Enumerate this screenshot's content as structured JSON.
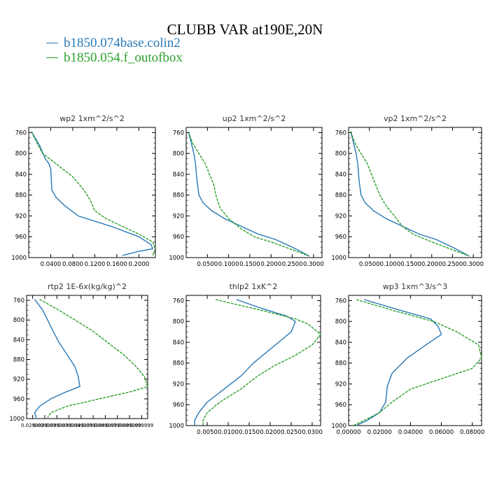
{
  "figure": {
    "title": "CLUBB VAR at190E,20N",
    "legend": [
      {
        "label": "b1850.074base.colin2",
        "color": "#2878b5"
      },
      {
        "label": "b1850.054.f_outofbox",
        "color": "#2ca02c"
      }
    ]
  },
  "chart_data": [
    {
      "type": "line",
      "title": "wp2   1xm^2/s^2",
      "xticks": [
        "0.0400",
        "0.0800",
        "0.1200",
        "0.1600",
        "0.2000"
      ],
      "xlim": [
        0.0,
        0.23
      ],
      "yticks": [
        "760",
        "800",
        "840",
        "880",
        "920",
        "960",
        "1000"
      ],
      "ylim": [
        750,
        1000
      ],
      "series": [
        {
          "color": "#2878b5",
          "x": [
            0.005,
            0.02,
            0.03,
            0.037,
            0.04,
            0.042,
            0.05,
            0.065,
            0.09,
            0.15,
            0.2,
            0.222,
            0.225,
            0.2,
            0.17
          ],
          "y": [
            758,
            785,
            810,
            820,
            830,
            870,
            885,
            900,
            920,
            940,
            960,
            975,
            983,
            988,
            996
          ]
        },
        {
          "color": "#2ca02c",
          "dashed": true,
          "x": [
            0.005,
            0.015,
            0.025,
            0.05,
            0.08,
            0.1,
            0.112,
            0.12,
            0.14,
            0.17,
            0.2,
            0.225,
            0.23,
            0.225
          ],
          "y": [
            758,
            780,
            800,
            820,
            845,
            870,
            890,
            910,
            925,
            940,
            955,
            970,
            982,
            996
          ]
        }
      ]
    },
    {
      "type": "line",
      "title": "up2   1xm^2/s^2",
      "xticks": [
        "0.0500",
        "0.1000",
        "0.1500",
        "0.2000",
        "0.2500",
        "0.3000"
      ],
      "xlim": [
        0.0,
        0.32
      ],
      "yticks": [
        "760",
        "800",
        "840",
        "880",
        "920",
        "960",
        "1000"
      ],
      "ylim": [
        750,
        1000
      ],
      "series": [
        {
          "color": "#2878b5",
          "x": [
            0.005,
            0.012,
            0.018,
            0.022,
            0.025,
            0.03,
            0.04,
            0.06,
            0.09,
            0.13,
            0.17,
            0.21,
            0.25,
            0.29
          ],
          "y": [
            758,
            780,
            800,
            820,
            850,
            880,
            895,
            910,
            925,
            940,
            955,
            965,
            980,
            997
          ]
        },
        {
          "color": "#2ca02c",
          "dashed": true,
          "x": [
            0.005,
            0.015,
            0.03,
            0.045,
            0.055,
            0.065,
            0.07,
            0.08,
            0.1,
            0.13,
            0.16,
            0.2,
            0.25,
            0.29
          ],
          "y": [
            758,
            780,
            800,
            820,
            840,
            860,
            880,
            905,
            925,
            945,
            960,
            970,
            985,
            997
          ]
        }
      ]
    },
    {
      "type": "line",
      "title": "vp2   1xm^2/s^2",
      "xticks": [
        "0.0500",
        "0.1000",
        "0.1500",
        "0.2000",
        "0.2500",
        "0.3000"
      ],
      "xlim": [
        0.0,
        0.32
      ],
      "yticks": [
        "760",
        "800",
        "840",
        "880",
        "920",
        "960",
        "1000"
      ],
      "ylim": [
        750,
        1000
      ],
      "series": [
        {
          "color": "#2878b5",
          "x": [
            0.005,
            0.012,
            0.018,
            0.022,
            0.025,
            0.03,
            0.04,
            0.06,
            0.09,
            0.13,
            0.17,
            0.21,
            0.25,
            0.29
          ],
          "y": [
            758,
            780,
            800,
            820,
            850,
            880,
            895,
            910,
            925,
            940,
            955,
            965,
            980,
            997
          ]
        },
        {
          "color": "#2ca02c",
          "dashed": true,
          "x": [
            0.005,
            0.015,
            0.03,
            0.045,
            0.055,
            0.065,
            0.075,
            0.09,
            0.11,
            0.13,
            0.155,
            0.2,
            0.25,
            0.29
          ],
          "y": [
            758,
            780,
            800,
            820,
            840,
            860,
            880,
            900,
            920,
            940,
            955,
            970,
            985,
            997
          ]
        }
      ]
    },
    {
      "type": "line",
      "title": "rtp2   1E-6x(kg/kg)^2",
      "xticks": [
        "0.029999",
        "0.029999",
        "0.039999",
        "0.039999",
        "0.049999",
        "0.059999",
        "0.069999",
        "0.079999",
        "0.089999",
        "0.099999"
      ],
      "xlim": [
        0.025,
        0.1
      ],
      "yticks": [
        "760",
        "800",
        "840",
        "880",
        "920",
        "960",
        "1000"
      ],
      "ylim": [
        750,
        1000
      ],
      "series": [
        {
          "color": "#2878b5",
          "x": [
            0.03,
            0.035,
            0.038,
            0.041,
            0.045,
            0.05,
            0.055,
            0.057,
            0.058,
            0.05,
            0.04,
            0.033,
            0.03,
            0.031
          ],
          "y": [
            758,
            780,
            800,
            820,
            845,
            870,
            895,
            915,
            935,
            945,
            960,
            975,
            988,
            998
          ]
        },
        {
          "color": "#2ca02c",
          "dashed": true,
          "x": [
            0.033,
            0.045,
            0.055,
            0.065,
            0.075,
            0.085,
            0.093,
            0.098,
            0.1,
            0.09,
            0.07,
            0.05,
            0.04,
            0.038
          ],
          "y": [
            758,
            780,
            800,
            820,
            845,
            870,
            895,
            915,
            935,
            945,
            960,
            975,
            988,
            998
          ]
        }
      ]
    },
    {
      "type": "line",
      "title": "thlp2   1xK^2",
      "xticks": [
        "0.0050",
        "0.0100",
        "0.0150",
        "0.0200",
        "0.0250",
        "0.0300"
      ],
      "xlim": [
        0.0,
        0.032
      ],
      "yticks": [
        "760",
        "800",
        "840",
        "880",
        "920",
        "960",
        "1000"
      ],
      "ylim": [
        750,
        1000
      ],
      "series": [
        {
          "color": "#2878b5",
          "x": [
            0.012,
            0.018,
            0.024,
            0.026,
            0.025,
            0.022,
            0.019,
            0.016,
            0.013,
            0.009,
            0.005,
            0.003,
            0.002,
            0.002
          ],
          "y": [
            758,
            775,
            790,
            800,
            820,
            840,
            860,
            880,
            905,
            930,
            955,
            975,
            990,
            1000
          ]
        },
        {
          "color": "#2ca02c",
          "dashed": true,
          "x": [
            0.007,
            0.016,
            0.026,
            0.029,
            0.032,
            0.03,
            0.026,
            0.021,
            0.017,
            0.013,
            0.008,
            0.005,
            0.004,
            0.004
          ],
          "y": [
            758,
            775,
            795,
            805,
            825,
            845,
            865,
            885,
            905,
            930,
            955,
            975,
            990,
            1000
          ]
        }
      ]
    },
    {
      "type": "line",
      "title": "wp3   1xm^3/s^3",
      "xticks": [
        "0.00000",
        "0.02000",
        "0.04000",
        "0.06000",
        "0.08000"
      ],
      "xlim": [
        0.0,
        0.086
      ],
      "yticks": [
        "760",
        "800",
        "840",
        "880",
        "920",
        "960",
        "1000"
      ],
      "ylim": [
        750,
        1000
      ],
      "series": [
        {
          "color": "#2878b5",
          "x": [
            0.01,
            0.035,
            0.053,
            0.058,
            0.06,
            0.05,
            0.038,
            0.028,
            0.025,
            0.024,
            0.02,
            0.012,
            0.005
          ],
          "y": [
            758,
            780,
            795,
            810,
            825,
            845,
            870,
            900,
            925,
            955,
            975,
            990,
            1000
          ]
        },
        {
          "color": "#2ca02c",
          "dashed": true,
          "x": [
            0.005,
            0.03,
            0.055,
            0.07,
            0.084,
            0.086,
            0.08,
            0.06,
            0.04,
            0.028,
            0.02,
            0.01,
            0.003
          ],
          "y": [
            758,
            780,
            800,
            820,
            845,
            870,
            890,
            910,
            930,
            955,
            975,
            990,
            1000
          ]
        }
      ]
    }
  ]
}
